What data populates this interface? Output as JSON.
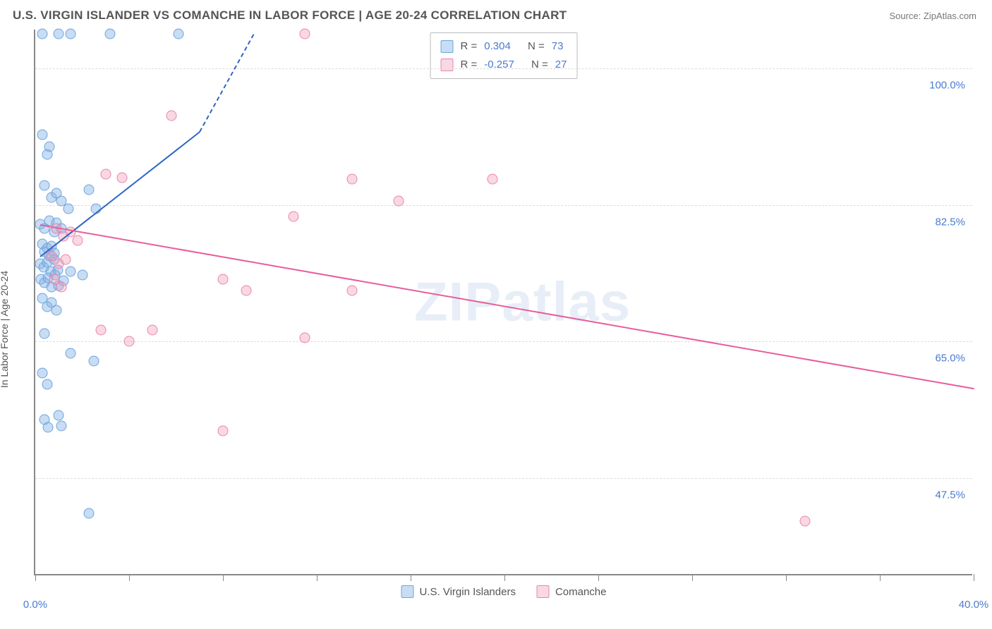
{
  "header": {
    "title": "U.S. VIRGIN ISLANDER VS COMANCHE IN LABOR FORCE | AGE 20-24 CORRELATION CHART",
    "source": "Source: ZipAtlas.com"
  },
  "watermark": "ZIPatlas",
  "chart": {
    "type": "scatter",
    "yaxis_label": "In Labor Force | Age 20-24",
    "xlim": [
      0,
      40
    ],
    "ylim": [
      35,
      105
    ],
    "xtick_positions": [
      0,
      4,
      8,
      12,
      16,
      20,
      24,
      28,
      32,
      36,
      40
    ],
    "xtick_labels": {
      "0": "0.0%",
      "40": "40.0%"
    },
    "ytick_positions": [
      47.5,
      65.0,
      82.5,
      100.0
    ],
    "ytick_labels": [
      "47.5%",
      "65.0%",
      "82.5%",
      "100.0%"
    ],
    "background_color": "#ffffff",
    "grid_color": "#dcdcdc",
    "axis_color": "#888888",
    "tick_label_color": "#4a7bd0",
    "point_radius": 7.5,
    "series": [
      {
        "name": "U.S. Virgin Islanders",
        "fill": "rgba(133, 178, 228, 0.45)",
        "stroke": "#6da6de",
        "trend_color": "#2d66c4",
        "r_value": "0.304",
        "n_value": "73",
        "trend": {
          "x1": 0.2,
          "y1": 76.0,
          "x2": 7.0,
          "y2": 92.0,
          "dash_to_x": 9.3,
          "dash_to_y": 104.5
        },
        "points": [
          [
            0.3,
            104.5
          ],
          [
            1.0,
            104.5
          ],
          [
            1.5,
            104.5
          ],
          [
            3.2,
            104.5
          ],
          [
            6.1,
            104.5
          ],
          [
            0.3,
            91.5
          ],
          [
            0.5,
            89.0
          ],
          [
            0.6,
            90.0
          ],
          [
            0.4,
            85.0
          ],
          [
            0.7,
            83.5
          ],
          [
            0.9,
            84.0
          ],
          [
            1.1,
            83.0
          ],
          [
            1.4,
            82.0
          ],
          [
            2.3,
            84.5
          ],
          [
            2.6,
            82.0
          ],
          [
            0.2,
            80.0
          ],
          [
            0.4,
            79.5
          ],
          [
            0.6,
            80.5
          ],
          [
            0.8,
            79.0
          ],
          [
            0.9,
            80.2
          ],
          [
            1.1,
            79.5
          ],
          [
            0.3,
            77.5
          ],
          [
            0.4,
            76.5
          ],
          [
            0.5,
            77.0
          ],
          [
            0.6,
            76.0
          ],
          [
            0.7,
            77.2
          ],
          [
            0.8,
            76.3
          ],
          [
            0.2,
            75.0
          ],
          [
            0.35,
            74.5
          ],
          [
            0.5,
            75.2
          ],
          [
            0.65,
            74.0
          ],
          [
            0.8,
            75.5
          ],
          [
            0.95,
            74.2
          ],
          [
            0.25,
            73.0
          ],
          [
            0.4,
            72.5
          ],
          [
            0.55,
            73.2
          ],
          [
            0.7,
            72.0
          ],
          [
            0.85,
            73.5
          ],
          [
            1.0,
            72.2
          ],
          [
            1.2,
            72.8
          ],
          [
            1.5,
            74.0
          ],
          [
            2.0,
            73.5
          ],
          [
            0.3,
            70.5
          ],
          [
            0.5,
            69.5
          ],
          [
            0.7,
            70.0
          ],
          [
            0.9,
            69.0
          ],
          [
            0.4,
            66.0
          ],
          [
            1.5,
            63.5
          ],
          [
            2.5,
            62.5
          ],
          [
            0.3,
            61.0
          ],
          [
            0.5,
            59.5
          ],
          [
            0.4,
            55.0
          ],
          [
            0.55,
            54.0
          ],
          [
            1.0,
            55.5
          ],
          [
            1.1,
            54.2
          ],
          [
            2.3,
            43.0
          ]
        ]
      },
      {
        "name": "Comanche",
        "fill": "rgba(239, 157, 185, 0.4)",
        "stroke": "#e984ae",
        "trend_color": "#e85d9a",
        "r_value": "-0.257",
        "n_value": "27",
        "trend": {
          "x1": 0.2,
          "y1": 80.0,
          "x2": 40.0,
          "y2": 59.0
        },
        "points": [
          [
            11.5,
            104.5
          ],
          [
            5.8,
            94.0
          ],
          [
            3.0,
            86.5
          ],
          [
            3.7,
            86.0
          ],
          [
            13.5,
            85.8
          ],
          [
            19.5,
            85.8
          ],
          [
            15.5,
            83.0
          ],
          [
            11.0,
            81.0
          ],
          [
            0.9,
            79.5
          ],
          [
            1.2,
            78.5
          ],
          [
            1.5,
            79.0
          ],
          [
            1.8,
            78.0
          ],
          [
            0.7,
            76.0
          ],
          [
            1.0,
            75.0
          ],
          [
            1.3,
            75.5
          ],
          [
            0.8,
            73.0
          ],
          [
            1.1,
            72.0
          ],
          [
            8.0,
            73.0
          ],
          [
            9.0,
            71.5
          ],
          [
            13.5,
            71.5
          ],
          [
            2.8,
            66.5
          ],
          [
            5.0,
            66.5
          ],
          [
            11.5,
            65.5
          ],
          [
            4.0,
            65.0
          ],
          [
            8.0,
            53.5
          ],
          [
            32.8,
            42.0
          ]
        ]
      }
    ]
  },
  "legend_top": {
    "r_label": "R =",
    "n_label": "N ="
  },
  "legend_bottom": {
    "series1_label": "U.S. Virgin Islanders",
    "series2_label": "Comanche"
  }
}
